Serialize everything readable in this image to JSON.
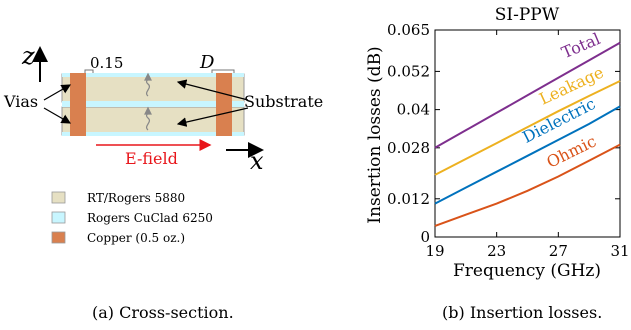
{
  "colors": {
    "rt_rogers": "#e6e0c3",
    "cuclad": "#c8f6ff",
    "copper": "#d9804f",
    "total": "#7e2f8e",
    "leakage": "#edb120",
    "dielectric": "#0072bd",
    "ohmic": "#d95319",
    "efield": "#e8161b"
  },
  "cross_section": {
    "axis_z": "z",
    "axis_x": "x",
    "dim_thickness": "0.15",
    "dim_D": "D",
    "label_vias": "Vias",
    "label_substrate": "Substrate",
    "label_efield": "E-field",
    "legend": [
      {
        "name": "RT/Rogers 5880",
        "color": "#e6e0c3"
      },
      {
        "name": "Rogers CuClad 6250",
        "color": "#c8f6ff"
      },
      {
        "name": "Copper (0.5 oz.)",
        "color": "#d9804f"
      }
    ],
    "caption": "(a) Cross-section."
  },
  "chart_data": {
    "type": "line",
    "title": "SI-PPW",
    "xlabel": "Frequency (GHz)",
    "ylabel": "Insertion losses (dB)",
    "x_ticks": [
      "19",
      "23",
      "27",
      "31"
    ],
    "y_ticks": [
      "0",
      "0.012",
      "0.028",
      "0.04",
      "0.052",
      "0.065"
    ],
    "xlim": [
      19,
      31
    ],
    "ylim": [
      0,
      0.065
    ],
    "x": [
      19,
      21,
      23,
      25,
      27,
      29,
      31
    ],
    "series": [
      {
        "name": "Total",
        "color": "#7e2f8e",
        "values": [
          0.028,
          0.0335,
          0.039,
          0.0445,
          0.05,
          0.0555,
          0.061
        ]
      },
      {
        "name": "Leakage",
        "color": "#edb120",
        "values": [
          0.0195,
          0.0245,
          0.0295,
          0.0345,
          0.0395,
          0.0443,
          0.049
        ]
      },
      {
        "name": "Dielectric",
        "color": "#0072bd",
        "values": [
          0.0105,
          0.0155,
          0.0205,
          0.0255,
          0.0305,
          0.0355,
          0.041
        ]
      },
      {
        "name": "Ohmic",
        "color": "#d95319",
        "values": [
          0.0035,
          0.007,
          0.0105,
          0.0145,
          0.019,
          0.024,
          0.029
        ]
      }
    ],
    "caption": "(b) Insertion losses."
  }
}
